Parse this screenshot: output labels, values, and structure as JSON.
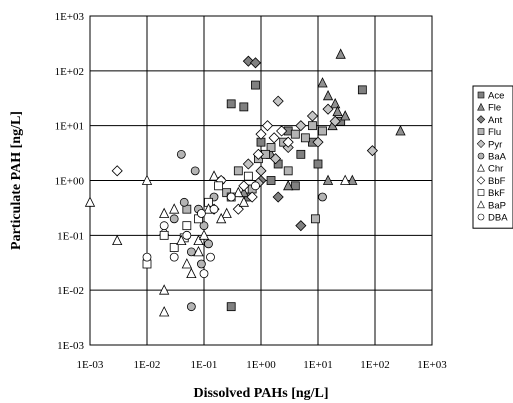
{
  "chart_data": {
    "type": "scatter",
    "xlabel": "Dissolved PAHs [ng/L]",
    "ylabel": "Particulate PAH [ng/L]",
    "xscale": "log",
    "yscale": "log",
    "xlim": [
      0.001,
      1000
    ],
    "ylim": [
      0.001,
      1000
    ],
    "x_ticks": [
      "1E-03",
      "1E-02",
      "1E-01",
      "1E+00",
      "1E+01",
      "1E+02",
      "1E+03"
    ],
    "y_ticks": [
      "1E-03",
      "1E-02",
      "1E-01",
      "1E+00",
      "1E+01",
      "1E+02",
      "1E+03"
    ],
    "grid": true,
    "legend_position": "right",
    "series": [
      {
        "name": "Ace",
        "marker": "square",
        "fill": "#808080",
        "points": [
          [
            0.3,
            25
          ],
          [
            0.5,
            22
          ],
          [
            0.8,
            55
          ],
          [
            3,
            8
          ],
          [
            5,
            3
          ],
          [
            8,
            5
          ],
          [
            25,
            12
          ],
          [
            60,
            45
          ],
          [
            1,
            5
          ],
          [
            2,
            2
          ],
          [
            4,
            0.8
          ],
          [
            1.5,
            1
          ],
          [
            0.6,
            0.5
          ],
          [
            10,
            2
          ],
          [
            0.3,
            0.005
          ]
        ]
      },
      {
        "name": "Fle",
        "marker": "triangle",
        "fill": "#909090",
        "points": [
          [
            12,
            60
          ],
          [
            15,
            35
          ],
          [
            20,
            25
          ],
          [
            25,
            200
          ],
          [
            30,
            15
          ],
          [
            22,
            18
          ],
          [
            18,
            10
          ],
          [
            280,
            8
          ],
          [
            40,
            1
          ],
          [
            15,
            1
          ],
          [
            3,
            0.8
          ],
          [
            0.5,
            0.6
          ],
          [
            1.5,
            3
          ]
        ]
      },
      {
        "name": "Ant",
        "marker": "diamond",
        "fill": "#808080",
        "points": [
          [
            0.6,
            150
          ],
          [
            0.8,
            140
          ],
          [
            5,
            0.15
          ],
          [
            0.15,
            0.3
          ],
          [
            2,
            0.5
          ],
          [
            1,
            1
          ]
        ]
      },
      {
        "name": "Flu",
        "marker": "square",
        "fill": "#b4b4b4",
        "points": [
          [
            0.4,
            1.5
          ],
          [
            0.9,
            2.5
          ],
          [
            1.5,
            4
          ],
          [
            2.5,
            5
          ],
          [
            4,
            7
          ],
          [
            6,
            6
          ],
          [
            8,
            10
          ],
          [
            12,
            8
          ],
          [
            0.7,
            0.7
          ],
          [
            3,
            1.5
          ],
          [
            1.2,
            3
          ],
          [
            0.25,
            0.6
          ],
          [
            9,
            0.2
          ],
          [
            0.05,
            0.3
          ]
        ]
      },
      {
        "name": "Pyr",
        "marker": "diamond",
        "fill": "#c4c4c4",
        "points": [
          [
            2,
            28
          ],
          [
            5,
            10
          ],
          [
            8,
            15
          ],
          [
            15,
            20
          ],
          [
            20,
            12
          ],
          [
            1,
            1.5
          ],
          [
            1.8,
            2.5
          ],
          [
            3,
            4
          ],
          [
            0.6,
            2
          ],
          [
            0.9,
            0.9
          ],
          [
            10,
            5
          ],
          [
            90,
            3.5
          ]
        ]
      },
      {
        "name": "BaA",
        "marker": "circle",
        "fill": "#b4b4b4",
        "points": [
          [
            0.03,
            0.2
          ],
          [
            0.05,
            0.1
          ],
          [
            0.06,
            0.05
          ],
          [
            0.08,
            0.3
          ],
          [
            0.1,
            0.15
          ],
          [
            0.04,
            3
          ],
          [
            0.07,
            1.5
          ],
          [
            0.09,
            0.03
          ],
          [
            0.15,
            0.5
          ],
          [
            0.2,
            1
          ],
          [
            0.06,
            0.005
          ],
          [
            12,
            0.5
          ],
          [
            0.12,
            0.07
          ],
          [
            0.045,
            0.4
          ]
        ]
      },
      {
        "name": "Chr",
        "marker": "triangle",
        "fill": "#ffffff",
        "points": [
          [
            0.001,
            0.4
          ],
          [
            0.02,
            0.12
          ],
          [
            0.03,
            0.3
          ],
          [
            0.05,
            0.03
          ],
          [
            0.08,
            0.08
          ],
          [
            0.1,
            0.1
          ],
          [
            0.15,
            1.2
          ],
          [
            0.25,
            0.25
          ],
          [
            0.4,
            0.6
          ],
          [
            30,
            1
          ],
          [
            0.02,
            0.004
          ],
          [
            0.003,
            0.08
          ]
        ]
      },
      {
        "name": "BbF",
        "marker": "diamond",
        "fill": "#ffffff",
        "points": [
          [
            0.003,
            1.5
          ],
          [
            0.2,
            1
          ],
          [
            0.5,
            0.8
          ],
          [
            0.7,
            0.5
          ],
          [
            1,
            7
          ],
          [
            1.3,
            10
          ],
          [
            1.7,
            6
          ],
          [
            2.3,
            8
          ],
          [
            0.4,
            0.3
          ],
          [
            3,
            5
          ],
          [
            0.9,
            3
          ]
        ]
      },
      {
        "name": "BkF",
        "marker": "square",
        "fill": "#ffffff",
        "points": [
          [
            0.01,
            0.03
          ],
          [
            0.02,
            0.1
          ],
          [
            0.03,
            0.06
          ],
          [
            0.05,
            0.15
          ],
          [
            0.08,
            0.2
          ],
          [
            0.12,
            0.4
          ],
          [
            0.18,
            0.8
          ],
          [
            0.3,
            0.5
          ],
          [
            0.6,
            1.2
          ],
          [
            0.045,
            0.09
          ]
        ]
      },
      {
        "name": "BaP",
        "marker": "triangle",
        "fill": "#ffffff",
        "points": [
          [
            0.01,
            1
          ],
          [
            0.02,
            0.25
          ],
          [
            0.04,
            0.08
          ],
          [
            0.06,
            0.02
          ],
          [
            0.08,
            0.05
          ],
          [
            0.12,
            0.3
          ],
          [
            0.2,
            0.2
          ],
          [
            0.5,
            0.4
          ],
          [
            0.02,
            0.01
          ]
        ]
      },
      {
        "name": "DBA",
        "marker": "circle",
        "fill": "#ffffff",
        "points": [
          [
            0.01,
            0.04
          ],
          [
            0.03,
            0.04
          ],
          [
            0.05,
            0.1
          ],
          [
            0.09,
            0.25
          ],
          [
            0.13,
            0.04
          ],
          [
            0.15,
            0.3
          ],
          [
            0.3,
            0.5
          ],
          [
            0.8,
            0.8
          ],
          [
            0.1,
            0.02
          ],
          [
            0.02,
            0.15
          ]
        ]
      }
    ]
  }
}
